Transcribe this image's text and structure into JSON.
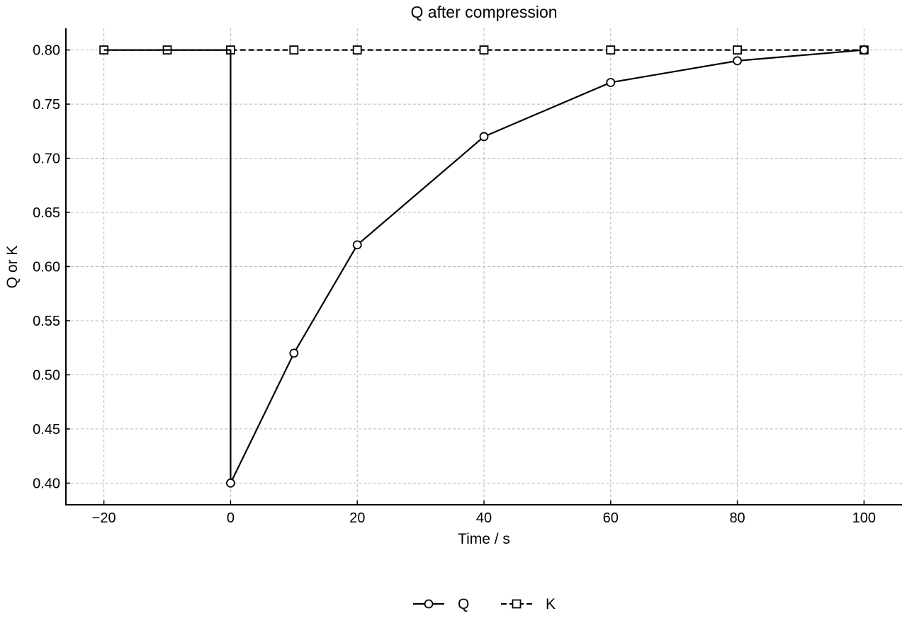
{
  "chart_data": {
    "type": "line",
    "title": "Q after compression",
    "xlabel": "Time / s",
    "ylabel": "Q or K",
    "xlim": [
      -26,
      106
    ],
    "ylim": [
      0.38,
      0.82
    ],
    "x_ticks": [
      -20,
      0,
      20,
      40,
      60,
      80,
      100
    ],
    "x_tick_labels": [
      "−20",
      "0",
      "20",
      "40",
      "60",
      "80",
      "100"
    ],
    "y_ticks": [
      0.4,
      0.45,
      0.5,
      0.55,
      0.6,
      0.65,
      0.7,
      0.75,
      0.8
    ],
    "y_tick_labels": [
      "0.40",
      "0.45",
      "0.50",
      "0.55",
      "0.60",
      "0.65",
      "0.70",
      "0.75",
      "0.80"
    ],
    "grid": true,
    "legend_position": "bottom-center",
    "series": [
      {
        "name": "Q",
        "marker": "circle",
        "line_style": "solid",
        "color": "#000000",
        "x": [
          -20,
          -10,
          0,
          0,
          10,
          20,
          40,
          60,
          80,
          100
        ],
        "y": [
          0.8,
          0.8,
          0.8,
          0.4,
          0.52,
          0.62,
          0.72,
          0.77,
          0.79,
          0.8
        ],
        "marker_indices": [
          3,
          4,
          5,
          6,
          7,
          8,
          9
        ]
      },
      {
        "name": "K",
        "marker": "square",
        "line_style": "dashed",
        "color": "#000000",
        "x": [
          -20,
          -10,
          0,
          10,
          20,
          40,
          60,
          80,
          100
        ],
        "y": [
          0.8,
          0.8,
          0.8,
          0.8,
          0.8,
          0.8,
          0.8,
          0.8,
          0.8
        ]
      }
    ]
  }
}
